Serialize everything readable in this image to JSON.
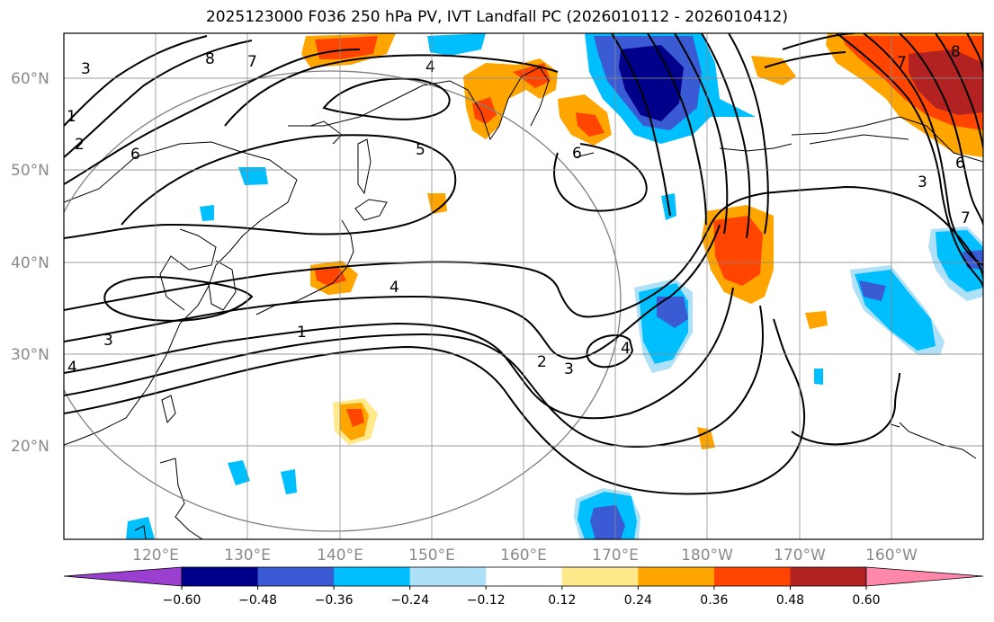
{
  "title": "2025123000 F036 250 hPa PV, IVT Landfall PC (2026010112 - 2026010412)",
  "lat_labels": [
    "60°N",
    "50°N",
    "40°N",
    "30°N",
    "20°N"
  ],
  "lon_labels": [
    "120°E",
    "130°E",
    "140°E",
    "150°E",
    "160°E",
    "170°E",
    "180°W",
    "170°W",
    "160°W"
  ],
  "contour_labels": [
    "8",
    "7",
    "6",
    "4",
    "3",
    "2",
    "1",
    "5",
    "4",
    "1",
    "2",
    "3",
    "4",
    "6",
    "8",
    "7",
    "6",
    "3",
    "7",
    "3",
    "4"
  ],
  "colorbar": {
    "ticks": [
      "−0.60",
      "−0.48",
      "−0.36",
      "−0.24",
      "−0.12",
      "0.12",
      "0.24",
      "0.36",
      "0.48",
      "0.60"
    ],
    "colors": [
      "#9a3fcf",
      "#00008b",
      "#3a5bd4",
      "#00bfff",
      "#aee0f7",
      "#ffffff",
      "#ffe98a",
      "#ffa500",
      "#ff4500",
      "#b22222",
      "#ff88aa"
    ]
  },
  "colors": {
    "neg_strong": "#00008b",
    "neg_mid": "#3a5bd4",
    "neg_light": "#00bfff",
    "neg_faint": "#aee0f7",
    "pos_faint": "#ffe98a",
    "pos_light": "#ffa500",
    "pos_mid": "#ff4500",
    "pos_strong": "#b22222"
  }
}
